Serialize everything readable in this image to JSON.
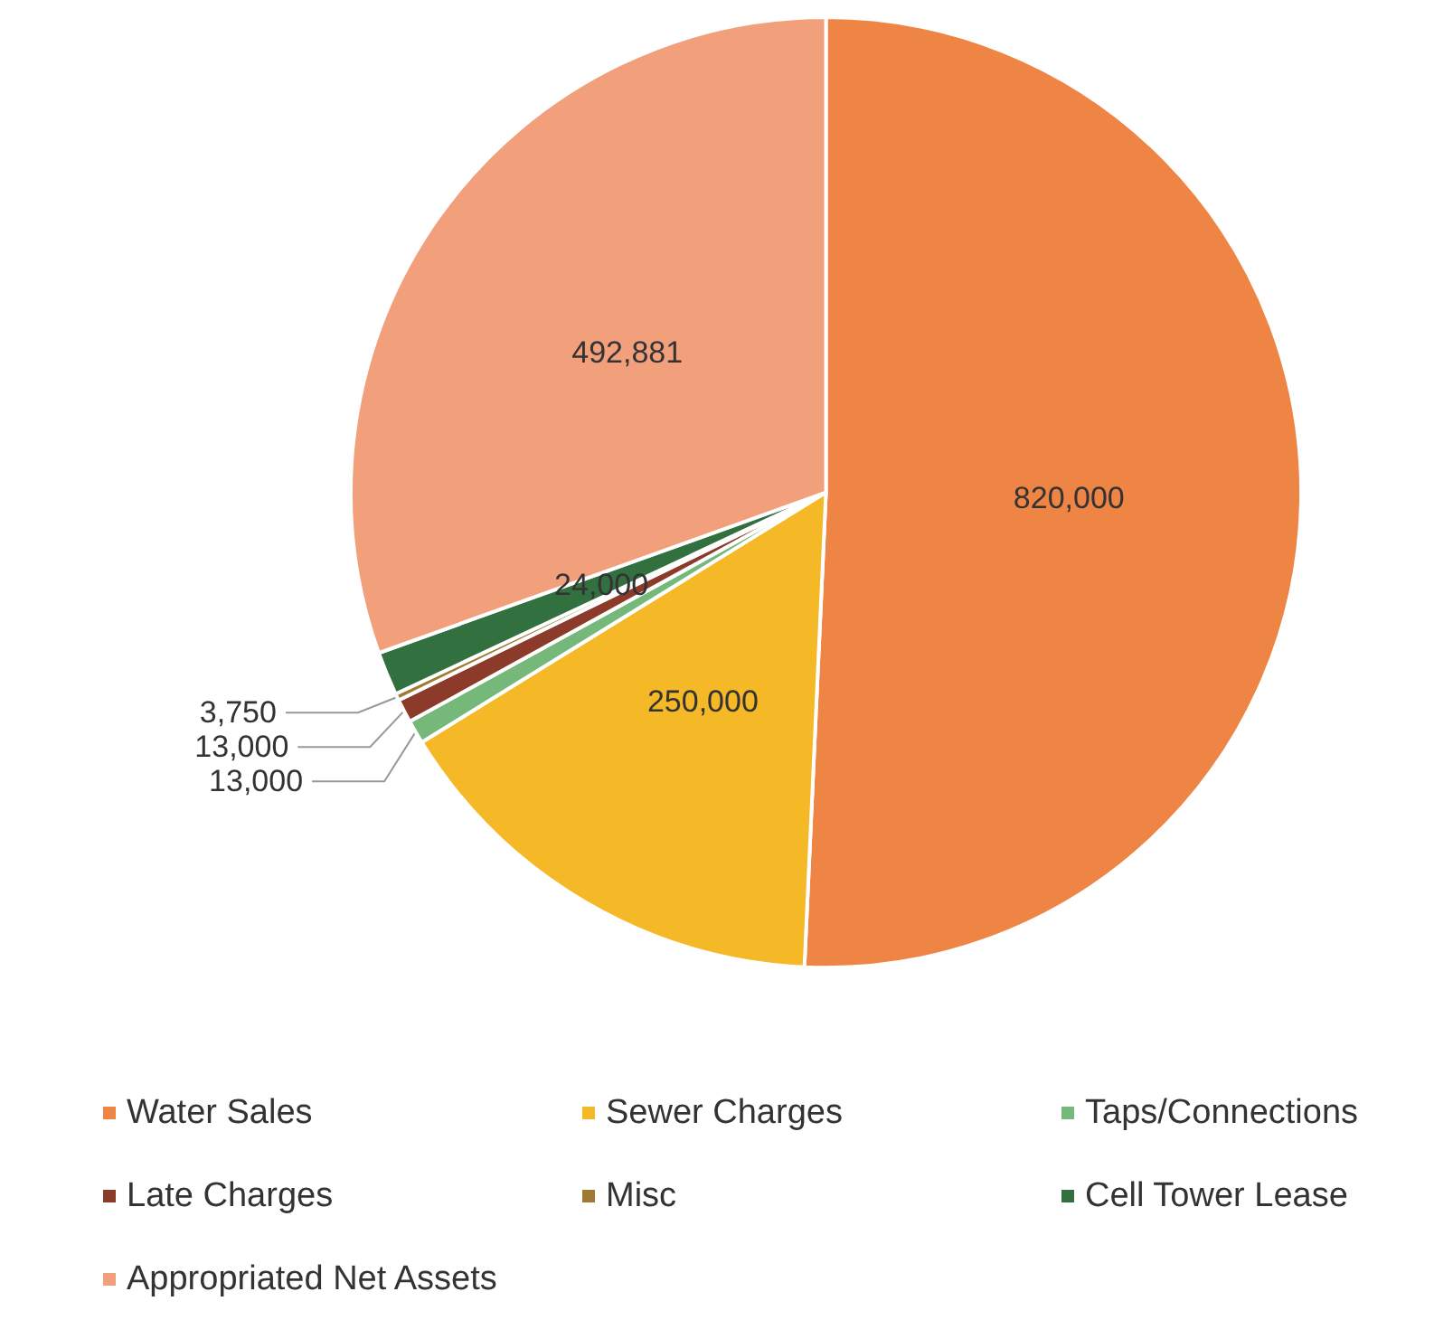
{
  "chart_data": {
    "type": "pie",
    "categories": [
      "Water Sales",
      "Sewer Charges",
      "Taps/Connections",
      "Late Charges",
      "Misc",
      "Cell Tower Lease",
      "Appropriated Net Assets"
    ],
    "values": [
      820000,
      250000,
      13000,
      13000,
      3750,
      24000,
      492881
    ],
    "colors": [
      "#ef8544",
      "#f5b826",
      "#76b87a",
      "#8c3b2a",
      "#a07a30",
      "#33703f",
      "#f2a07c"
    ],
    "value_labels": [
      "820,000",
      "250,000",
      "13,000",
      "13,000",
      "3,750",
      "24,000",
      "492,881"
    ],
    "legend": "bottom"
  }
}
